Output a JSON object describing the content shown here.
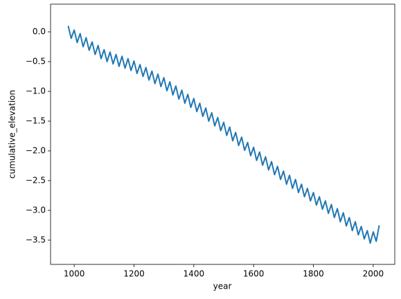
{
  "chart_data": {
    "type": "line",
    "x_label": "year",
    "y_label": "cumulative_elevation",
    "x": [
      980,
      990,
      1000,
      1010,
      1020,
      1030,
      1040,
      1050,
      1060,
      1070,
      1080,
      1090,
      1100,
      1110,
      1120,
      1130,
      1140,
      1150,
      1160,
      1170,
      1180,
      1190,
      1200,
      1210,
      1220,
      1230,
      1240,
      1250,
      1260,
      1270,
      1280,
      1290,
      1300,
      1310,
      1320,
      1330,
      1340,
      1350,
      1360,
      1370,
      1380,
      1390,
      1400,
      1410,
      1420,
      1430,
      1440,
      1450,
      1460,
      1470,
      1480,
      1490,
      1500,
      1510,
      1520,
      1530,
      1540,
      1550,
      1560,
      1570,
      1580,
      1590,
      1600,
      1610,
      1620,
      1630,
      1640,
      1650,
      1660,
      1670,
      1680,
      1690,
      1700,
      1710,
      1720,
      1730,
      1740,
      1750,
      1760,
      1770,
      1780,
      1790,
      1800,
      1810,
      1820,
      1830,
      1840,
      1850,
      1860,
      1870,
      1880,
      1890,
      1900,
      1910,
      1920,
      1930,
      1940,
      1950,
      1960,
      1970,
      1980,
      1990,
      2000,
      2010,
      2020
    ],
    "series": [
      {
        "color": "#1f77b4",
        "values": [
          0.1,
          -0.11,
          0.03,
          -0.18,
          -0.03,
          -0.25,
          -0.1,
          -0.31,
          -0.17,
          -0.38,
          -0.23,
          -0.45,
          -0.3,
          -0.5,
          -0.34,
          -0.54,
          -0.38,
          -0.58,
          -0.41,
          -0.61,
          -0.45,
          -0.65,
          -0.49,
          -0.7,
          -0.55,
          -0.75,
          -0.6,
          -0.81,
          -0.66,
          -0.87,
          -0.71,
          -0.92,
          -0.77,
          -0.99,
          -0.84,
          -1.06,
          -0.91,
          -1.13,
          -0.98,
          -1.2,
          -1.05,
          -1.27,
          -1.12,
          -1.34,
          -1.2,
          -1.42,
          -1.28,
          -1.5,
          -1.36,
          -1.58,
          -1.44,
          -1.66,
          -1.52,
          -1.74,
          -1.6,
          -1.83,
          -1.69,
          -1.91,
          -1.77,
          -1.99,
          -1.86,
          -2.08,
          -1.94,
          -2.16,
          -2.02,
          -2.24,
          -2.1,
          -2.32,
          -2.18,
          -2.4,
          -2.26,
          -2.48,
          -2.34,
          -2.56,
          -2.41,
          -2.63,
          -2.48,
          -2.7,
          -2.56,
          -2.77,
          -2.63,
          -2.84,
          -2.7,
          -2.91,
          -2.77,
          -2.98,
          -2.84,
          -3.05,
          -2.9,
          -3.12,
          -2.97,
          -3.19,
          -3.04,
          -3.26,
          -3.12,
          -3.34,
          -3.19,
          -3.41,
          -3.27,
          -3.48,
          -3.34,
          -3.55,
          -3.36,
          -3.52,
          -3.25
        ]
      }
    ],
    "xlim": [
      921,
      2072
    ],
    "ylim": [
      -3.907,
      0.465
    ],
    "xticks": [
      1000,
      1200,
      1400,
      1600,
      1800,
      2000
    ],
    "yticks": [
      {
        "value": 0,
        "label": "0.0"
      },
      {
        "value": -0.5,
        "label": "−0.5"
      },
      {
        "value": -1,
        "label": "−1.0"
      },
      {
        "value": -1.5,
        "label": "−1.5"
      },
      {
        "value": -2,
        "label": "−2.0"
      },
      {
        "value": -2.5,
        "label": "−2.5"
      },
      {
        "value": -3,
        "label": "−3.0"
      },
      {
        "value": -3.5,
        "label": "−3.5"
      }
    ],
    "grid": false
  }
}
